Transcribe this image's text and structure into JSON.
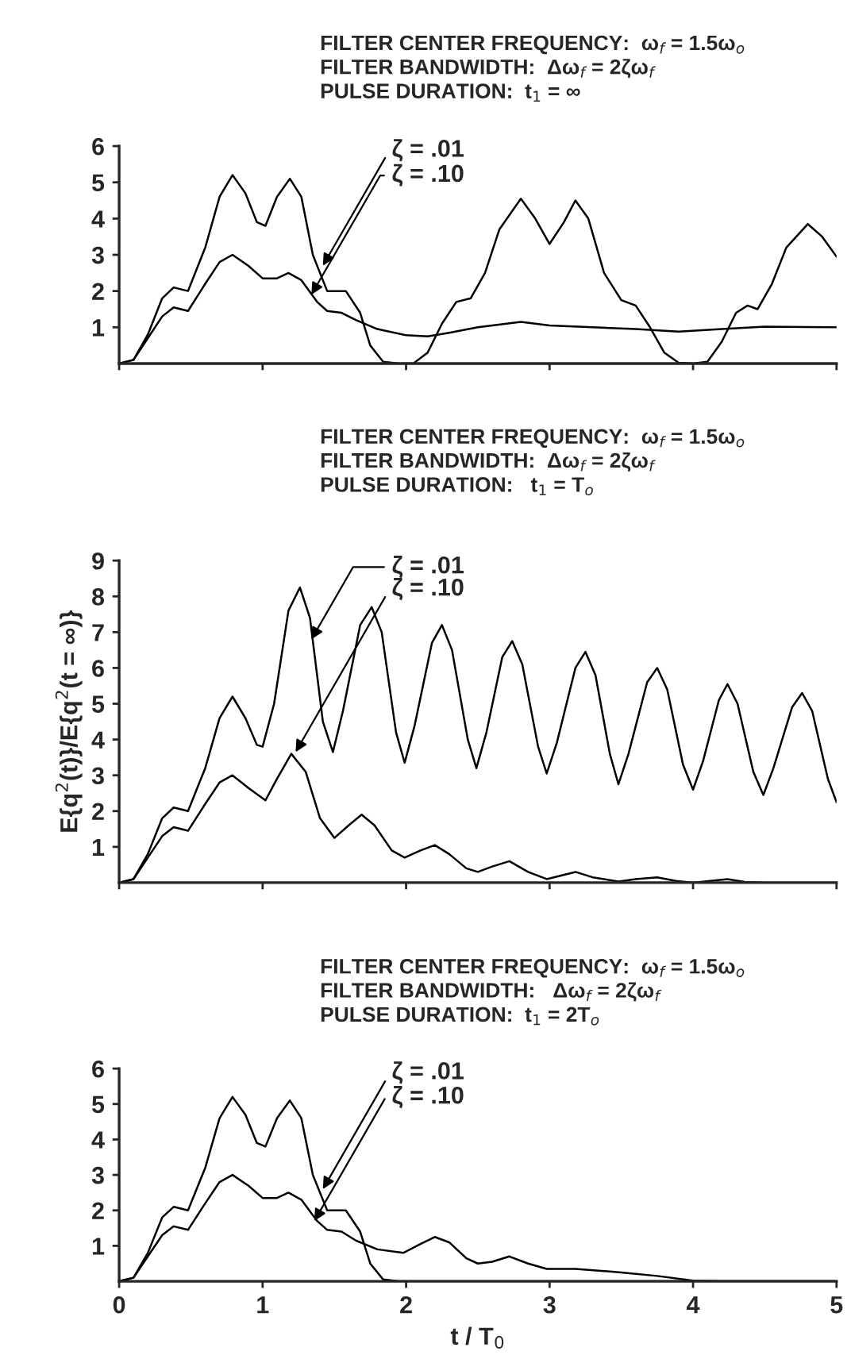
{
  "chart_data": [
    {
      "type": "line",
      "title": "FILTER CENTER FREQUENCY:  ω$_{f}$ = 1.5ω$_{o}$\nFILTER BANDWIDTH:  Δω$_{f}$ = 2ζω$_{f}$\nPULSE DURATION:  t$_{1}$ = ∞",
      "xlim": [
        0,
        5
      ],
      "xticks": [
        0,
        1,
        2,
        3,
        4,
        5
      ],
      "ylim": [
        0,
        6
      ],
      "yticks": [
        1,
        2,
        3,
        4,
        5,
        6
      ],
      "tick_labels": "y",
      "grid": false,
      "legend": false,
      "annotations": [
        {
          "text": "ζ = .01",
          "x": 1.42,
          "y": 2.7
        },
        {
          "text": "ζ = .10",
          "x": 1.34,
          "y": 1.9
        }
      ],
      "series": [
        {
          "color": "#000000",
          "x": [
            0,
            0.1,
            0.2,
            0.3,
            0.38,
            0.48,
            0.6,
            0.7,
            0.79,
            0.88,
            0.96,
            1.02,
            1.1,
            1.19,
            1.27,
            1.35,
            1.45,
            1.58,
            1.68,
            1.75,
            1.84,
            1.95,
            2.05,
            2.15,
            2.25,
            2.35,
            2.45,
            2.55,
            2.65,
            2.8,
            2.9,
            3.0,
            3.1,
            3.18,
            3.27,
            3.38,
            3.5,
            3.6,
            3.7,
            3.8,
            3.9,
            4.0,
            4.1,
            4.2,
            4.3,
            4.38,
            4.45,
            4.55,
            4.65,
            4.8,
            4.9,
            5.0
          ],
          "values": [
            0,
            0.1,
            0.8,
            1.8,
            2.1,
            2.0,
            3.2,
            4.6,
            5.2,
            4.7,
            3.9,
            3.8,
            4.6,
            5.1,
            4.6,
            3.0,
            2.0,
            2.0,
            1.4,
            0.5,
            0.05,
            0,
            0,
            0.3,
            1.1,
            1.7,
            1.8,
            2.5,
            3.7,
            4.55,
            4.0,
            3.3,
            3.9,
            4.5,
            4.0,
            2.5,
            1.75,
            1.6,
            1.0,
            0.3,
            0.02,
            0,
            0.05,
            0.6,
            1.4,
            1.6,
            1.5,
            2.2,
            3.2,
            3.85,
            3.5,
            2.95
          ]
        },
        {
          "color": "#000000",
          "x": [
            0,
            0.1,
            0.2,
            0.3,
            0.38,
            0.48,
            0.6,
            0.7,
            0.79,
            0.9,
            1.0,
            1.1,
            1.18,
            1.27,
            1.38,
            1.45,
            1.55,
            1.65,
            1.8,
            2.0,
            2.15,
            2.3,
            2.5,
            2.8,
            3.0,
            3.3,
            3.6,
            3.9,
            4.2,
            4.5,
            5.0
          ],
          "values": [
            0,
            0.1,
            0.7,
            1.3,
            1.55,
            1.45,
            2.2,
            2.8,
            3.0,
            2.7,
            2.35,
            2.35,
            2.5,
            2.3,
            1.7,
            1.45,
            1.4,
            1.2,
            0.95,
            0.78,
            0.75,
            0.85,
            1.0,
            1.15,
            1.05,
            1.0,
            0.95,
            0.88,
            0.95,
            1.02,
            1.0
          ]
        }
      ]
    },
    {
      "type": "line",
      "title": "FILTER CENTER FREQUENCY:  ω$_{f}$ = 1.5ω$_{o}$\nFILTER BANDWIDTH:  Δω$_{f}$ = 2ζω$_{f}$\nPULSE DURATION:   t$_{1}$ = T$_{o}$",
      "ylabel": "E{q$^{2}$(t)}/E{q$^{2}$(t = ∞)}",
      "xlim": [
        0,
        5
      ],
      "xticks": [
        0,
        1,
        2,
        3,
        4,
        5
      ],
      "ylim": [
        0,
        9
      ],
      "yticks": [
        1,
        2,
        3,
        4,
        5,
        6,
        7,
        8,
        9
      ],
      "tick_labels": "y",
      "grid": false,
      "legend": false,
      "annotations": [
        {
          "text": "ζ = .01",
          "x": 1.34,
          "y": 6.8
        },
        {
          "text": "ζ = .10",
          "x": 1.23,
          "y": 3.65
        }
      ],
      "series": [
        {
          "color": "#000000",
          "x": [
            0,
            0.1,
            0.2,
            0.3,
            0.38,
            0.48,
            0.6,
            0.7,
            0.79,
            0.88,
            0.96,
            1.0,
            1.08,
            1.18,
            1.26,
            1.33,
            1.42,
            1.49,
            1.56,
            1.68,
            1.76,
            1.83,
            1.93,
            1.99,
            2.06,
            2.18,
            2.25,
            2.32,
            2.43,
            2.49,
            2.56,
            2.67,
            2.74,
            2.81,
            2.92,
            2.98,
            3.05,
            3.18,
            3.25,
            3.32,
            3.42,
            3.48,
            3.55,
            3.68,
            3.75,
            3.82,
            3.93,
            4.0,
            4.07,
            4.18,
            4.24,
            4.31,
            4.42,
            4.49,
            4.56,
            4.69,
            4.76,
            4.83,
            4.94,
            5.0
          ],
          "values": [
            0,
            0.1,
            0.8,
            1.8,
            2.1,
            2.0,
            3.2,
            4.6,
            5.2,
            4.6,
            3.85,
            3.8,
            5.0,
            7.6,
            8.25,
            7.4,
            4.5,
            3.65,
            4.8,
            7.2,
            7.7,
            7.0,
            4.2,
            3.35,
            4.4,
            6.7,
            7.2,
            6.5,
            4.0,
            3.2,
            4.2,
            6.3,
            6.75,
            6.1,
            3.8,
            3.05,
            3.9,
            6.0,
            6.45,
            5.8,
            3.6,
            2.75,
            3.6,
            5.6,
            6.0,
            5.4,
            3.3,
            2.6,
            3.4,
            5.1,
            5.55,
            5.0,
            3.1,
            2.45,
            3.2,
            4.9,
            5.3,
            4.8,
            2.9,
            2.25
          ]
        },
        {
          "color": "#000000",
          "x": [
            0,
            0.1,
            0.2,
            0.3,
            0.38,
            0.48,
            0.6,
            0.7,
            0.79,
            0.9,
            1.02,
            1.1,
            1.2,
            1.3,
            1.4,
            1.5,
            1.6,
            1.69,
            1.78,
            1.9,
            1.99,
            2.1,
            2.2,
            2.3,
            2.42,
            2.5,
            2.6,
            2.72,
            2.85,
            2.98,
            3.08,
            3.18,
            3.3,
            3.48,
            3.6,
            3.75,
            3.88,
            4.0,
            4.12,
            4.24,
            4.36,
            4.5,
            5.0
          ],
          "values": [
            0,
            0.1,
            0.7,
            1.3,
            1.55,
            1.45,
            2.2,
            2.8,
            3.0,
            2.65,
            2.3,
            2.9,
            3.6,
            3.1,
            1.8,
            1.25,
            1.6,
            1.9,
            1.6,
            0.9,
            0.7,
            0.9,
            1.05,
            0.8,
            0.4,
            0.3,
            0.45,
            0.6,
            0.3,
            0.1,
            0.2,
            0.3,
            0.15,
            0.03,
            0.1,
            0.15,
            0.05,
            0,
            0.05,
            0.1,
            0.02,
            0,
            0
          ]
        }
      ]
    },
    {
      "type": "line",
      "title": "FILTER CENTER FREQUENCY:  ω$_{f}$ = 1.5ω$_{o}$\nFILTER BANDWIDTH:   Δω$_{f}$ = 2ζω$_{f}$\nPULSE DURATION:  t$_{1}$ = 2T$_{o}$",
      "xlabel": "t / T$_{0}$",
      "xlim": [
        0,
        5
      ],
      "xticks": [
        0,
        1,
        2,
        3,
        4,
        5
      ],
      "ylim": [
        0,
        6
      ],
      "yticks": [
        1,
        2,
        3,
        4,
        5,
        6
      ],
      "grid": false,
      "legend": false,
      "annotations": [
        {
          "text": "ζ = .01",
          "x": 1.42,
          "y": 2.6
        },
        {
          "text": "ζ = .10",
          "x": 1.36,
          "y": 1.7
        }
      ],
      "series": [
        {
          "color": "#000000",
          "x": [
            0,
            0.1,
            0.2,
            0.3,
            0.38,
            0.48,
            0.6,
            0.7,
            0.79,
            0.88,
            0.96,
            1.02,
            1.1,
            1.19,
            1.27,
            1.35,
            1.45,
            1.58,
            1.68,
            1.75,
            1.84,
            1.95,
            5.0
          ],
          "values": [
            0,
            0.1,
            0.8,
            1.8,
            2.1,
            2.0,
            3.2,
            4.6,
            5.2,
            4.7,
            3.9,
            3.8,
            4.6,
            5.1,
            4.6,
            3.0,
            2.0,
            2.0,
            1.4,
            0.5,
            0.05,
            0,
            0
          ]
        },
        {
          "color": "#000000",
          "x": [
            0,
            0.1,
            0.2,
            0.3,
            0.38,
            0.48,
            0.6,
            0.7,
            0.79,
            0.9,
            1.0,
            1.1,
            1.18,
            1.27,
            1.38,
            1.45,
            1.55,
            1.65,
            1.8,
            1.98,
            2.1,
            2.2,
            2.3,
            2.42,
            2.5,
            2.6,
            2.72,
            2.85,
            2.98,
            3.18,
            3.5,
            3.75,
            4.0,
            4.2,
            5.0
          ],
          "values": [
            0,
            0.1,
            0.7,
            1.3,
            1.55,
            1.45,
            2.2,
            2.8,
            3.0,
            2.7,
            2.35,
            2.35,
            2.5,
            2.3,
            1.7,
            1.45,
            1.4,
            1.15,
            0.9,
            0.8,
            1.05,
            1.25,
            1.1,
            0.65,
            0.5,
            0.55,
            0.7,
            0.5,
            0.35,
            0.35,
            0.25,
            0.15,
            0.02,
            0,
            0
          ]
        }
      ]
    }
  ]
}
